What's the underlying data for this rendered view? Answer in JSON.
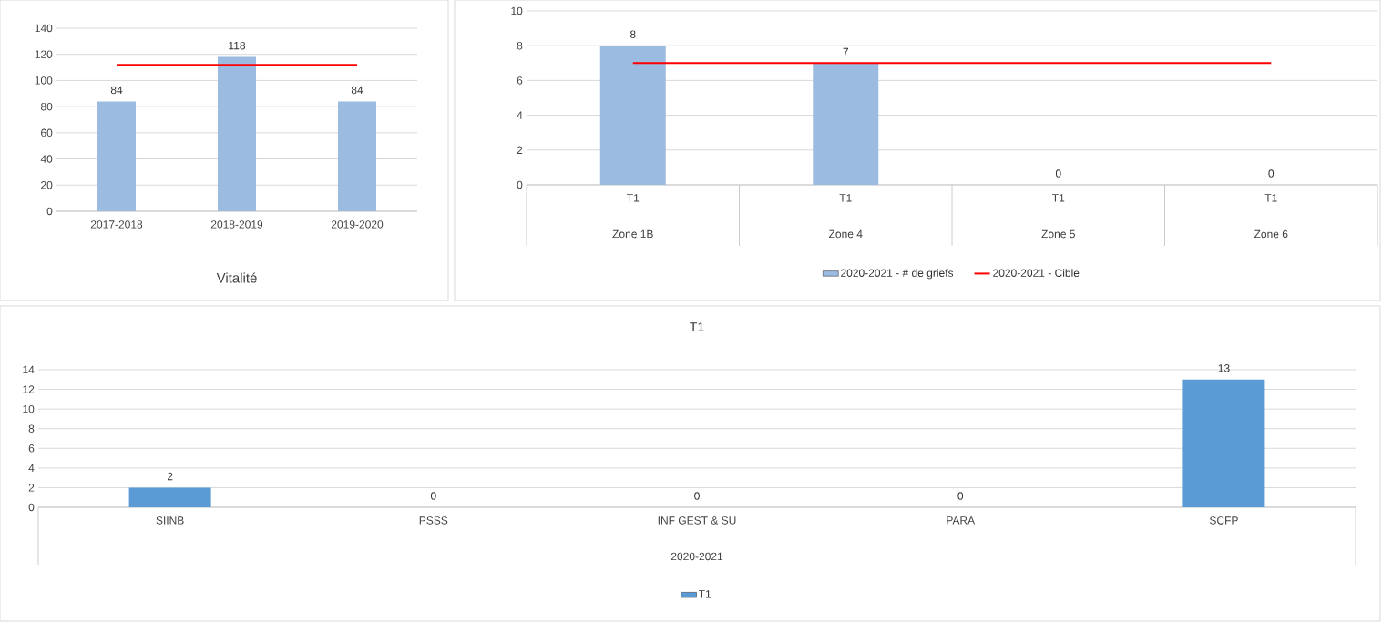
{
  "chart_data": [
    {
      "type": "bar",
      "categories": [
        "2017-2018",
        "2018-2019",
        "2019-2020"
      ],
      "xlabel": "Vitalité",
      "ylim": [
        0,
        140
      ],
      "yticks": [
        0,
        20,
        40,
        60,
        80,
        100,
        120,
        140
      ],
      "grid": "y",
      "legend": false,
      "series": [
        {
          "color": "#9bbbe0",
          "values": [
            84,
            118,
            84
          ],
          "value_labels": [
            "84",
            "118",
            "84"
          ]
        },
        {
          "type": "line",
          "color": "#ff0000",
          "values": [
            112,
            112,
            112
          ]
        }
      ]
    },
    {
      "type": "bar",
      "categories": [
        "T1",
        "T1",
        "T1",
        "T1"
      ],
      "annotations": [
        "Zone 1B",
        "Zone 4",
        "Zone 5",
        "Zone 6"
      ],
      "ylim": [
        0,
        10
      ],
      "yticks": [
        0,
        2,
        4,
        6,
        8,
        10
      ],
      "grid": "y",
      "legend": "bottom",
      "series": [
        {
          "name": "2020-2021 -  # de griefs",
          "color": "#9bbbe0",
          "values": [
            8,
            7,
            0,
            0
          ],
          "value_labels": [
            "8",
            "7",
            "0",
            "0"
          ]
        },
        {
          "name": "2020-2021 -  Cible",
          "type": "line",
          "color": "#ff0000",
          "values": [
            7,
            7,
            7,
            7
          ]
        }
      ]
    },
    {
      "type": "bar",
      "title": "T1",
      "categories": [
        "SIINB",
        "PSSS",
        "INF GEST & SU",
        "PARA",
        "SCFP"
      ],
      "xlabel": "2020-2021",
      "ylim": [
        0,
        14
      ],
      "yticks": [
        0,
        2,
        4,
        6,
        8,
        10,
        12,
        14
      ],
      "grid": "y",
      "legend": "bottom",
      "series": [
        {
          "name": "T1",
          "color": "#5b9bd5",
          "values": [
            2,
            0,
            0,
            0,
            13
          ],
          "value_labels": [
            "2",
            "0",
            "0",
            "0",
            "13"
          ]
        }
      ]
    }
  ]
}
